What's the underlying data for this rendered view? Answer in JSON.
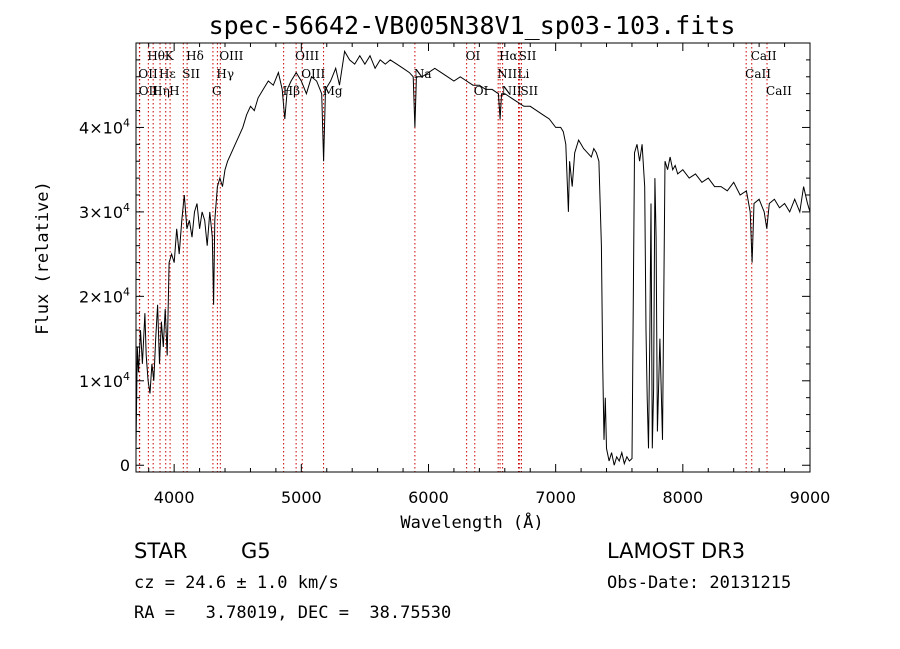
{
  "chart_data": {
    "type": "line",
    "title": "spec-56642-VB005N38V1_sp03-103.fits",
    "xlabel": "Wavelength (Å)",
    "ylabel": "Flux (relative)",
    "xlim": [
      3700,
      9000
    ],
    "ylim": [
      -800,
      50000
    ],
    "x_ticks": [
      4000,
      5000,
      6000,
      7000,
      8000,
      9000
    ],
    "y_ticks": [
      {
        "value": 0,
        "mant": "0",
        "exp": ""
      },
      {
        "value": 10000,
        "mant": "1×10",
        "exp": "4"
      },
      {
        "value": 20000,
        "mant": "2×10",
        "exp": "4"
      },
      {
        "value": 30000,
        "mant": "3×10",
        "exp": "4"
      },
      {
        "value": 40000,
        "mant": "4×10",
        "exp": "4"
      }
    ],
    "series": [
      {
        "name": "flux",
        "color": "#000000",
        "points": [
          [
            3700,
            2000
          ],
          [
            3710,
            14000
          ],
          [
            3720,
            11000
          ],
          [
            3735,
            16000
          ],
          [
            3750,
            12000
          ],
          [
            3770,
            18000
          ],
          [
            3780,
            13000
          ],
          [
            3795,
            10000
          ],
          [
            3810,
            8500
          ],
          [
            3825,
            12000
          ],
          [
            3840,
            10000
          ],
          [
            3855,
            15000
          ],
          [
            3870,
            19000
          ],
          [
            3885,
            12000
          ],
          [
            3900,
            17000
          ],
          [
            3915,
            14000
          ],
          [
            3930,
            18500
          ],
          [
            3945,
            13000
          ],
          [
            3960,
            24000
          ],
          [
            3980,
            25000
          ],
          [
            4000,
            24000
          ],
          [
            4020,
            28000
          ],
          [
            4040,
            25000
          ],
          [
            4060,
            29000
          ],
          [
            4080,
            32000
          ],
          [
            4100,
            28000
          ],
          [
            4120,
            29000
          ],
          [
            4140,
            27000
          ],
          [
            4160,
            30000
          ],
          [
            4180,
            31000
          ],
          [
            4200,
            28000
          ],
          [
            4220,
            30000
          ],
          [
            4240,
            29000
          ],
          [
            4260,
            26000
          ],
          [
            4280,
            30000
          ],
          [
            4300,
            27000
          ],
          [
            4310,
            19000
          ],
          [
            4320,
            29000
          ],
          [
            4340,
            33000
          ],
          [
            4360,
            34000
          ],
          [
            4380,
            33000
          ],
          [
            4400,
            35000
          ],
          [
            4420,
            36000
          ],
          [
            4450,
            37000
          ],
          [
            4480,
            38000
          ],
          [
            4510,
            39000
          ],
          [
            4540,
            40000
          ],
          [
            4570,
            41500
          ],
          [
            4600,
            42500
          ],
          [
            4630,
            42000
          ],
          [
            4660,
            43500
          ],
          [
            4700,
            44500
          ],
          [
            4740,
            45500
          ],
          [
            4780,
            45000
          ],
          [
            4820,
            46500
          ],
          [
            4850,
            44500
          ],
          [
            4870,
            41000
          ],
          [
            4890,
            44500
          ],
          [
            4920,
            45500
          ],
          [
            4960,
            46500
          ],
          [
            5000,
            45500
          ],
          [
            5040,
            44000
          ],
          [
            5080,
            46000
          ],
          [
            5120,
            45500
          ],
          [
            5160,
            44000
          ],
          [
            5175,
            36000
          ],
          [
            5190,
            44500
          ],
          [
            5230,
            45500
          ],
          [
            5270,
            47000
          ],
          [
            5300,
            45000
          ],
          [
            5340,
            49000
          ],
          [
            5380,
            48000
          ],
          [
            5420,
            47500
          ],
          [
            5460,
            48500
          ],
          [
            5500,
            47500
          ],
          [
            5540,
            48500
          ],
          [
            5580,
            47000
          ],
          [
            5620,
            48000
          ],
          [
            5660,
            47500
          ],
          [
            5700,
            48000
          ],
          [
            5750,
            47500
          ],
          [
            5800,
            47000
          ],
          [
            5850,
            46500
          ],
          [
            5880,
            46000
          ],
          [
            5893,
            40000
          ],
          [
            5905,
            46000
          ],
          [
            5950,
            46000
          ],
          [
            6000,
            46500
          ],
          [
            6050,
            47000
          ],
          [
            6100,
            46500
          ],
          [
            6150,
            46000
          ],
          [
            6200,
            45500
          ],
          [
            6250,
            46000
          ],
          [
            6300,
            45500
          ],
          [
            6350,
            45000
          ],
          [
            6400,
            45000
          ],
          [
            6450,
            44500
          ],
          [
            6500,
            44500
          ],
          [
            6550,
            44000
          ],
          [
            6563,
            41000
          ],
          [
            6575,
            44000
          ],
          [
            6600,
            44000
          ],
          [
            6650,
            43500
          ],
          [
            6700,
            43000
          ],
          [
            6750,
            42500
          ],
          [
            6800,
            42500
          ],
          [
            6850,
            42000
          ],
          [
            6900,
            41500
          ],
          [
            6950,
            41000
          ],
          [
            7000,
            40000
          ],
          [
            7040,
            40000
          ],
          [
            7060,
            39500
          ],
          [
            7080,
            38000
          ],
          [
            7100,
            30000
          ],
          [
            7110,
            36000
          ],
          [
            7130,
            33000
          ],
          [
            7150,
            37000
          ],
          [
            7180,
            38500
          ],
          [
            7200,
            38000
          ],
          [
            7220,
            37500
          ],
          [
            7250,
            37000
          ],
          [
            7280,
            36500
          ],
          [
            7300,
            37500
          ],
          [
            7320,
            37000
          ],
          [
            7340,
            36000
          ],
          [
            7360,
            26000
          ],
          [
            7370,
            12000
          ],
          [
            7380,
            3000
          ],
          [
            7390,
            8000
          ],
          [
            7400,
            2000
          ],
          [
            7420,
            500
          ],
          [
            7440,
            1500
          ],
          [
            7460,
            0
          ],
          [
            7480,
            1000
          ],
          [
            7500,
            500
          ],
          [
            7520,
            1500
          ],
          [
            7540,
            200
          ],
          [
            7560,
            1000
          ],
          [
            7580,
            500
          ],
          [
            7600,
            800
          ],
          [
            7620,
            37000
          ],
          [
            7640,
            38000
          ],
          [
            7660,
            36000
          ],
          [
            7680,
            38000
          ],
          [
            7700,
            33000
          ],
          [
            7710,
            16000
          ],
          [
            7720,
            8000
          ],
          [
            7730,
            2000
          ],
          [
            7740,
            15000
          ],
          [
            7750,
            31000
          ],
          [
            7760,
            2000
          ],
          [
            7770,
            9000
          ],
          [
            7780,
            34000
          ],
          [
            7790,
            27000
          ],
          [
            7800,
            4000
          ],
          [
            7820,
            15000
          ],
          [
            7840,
            3000
          ],
          [
            7860,
            36000
          ],
          [
            7880,
            35000
          ],
          [
            7900,
            36500
          ],
          [
            7920,
            35000
          ],
          [
            7940,
            35500
          ],
          [
            7960,
            34500
          ],
          [
            8000,
            35000
          ],
          [
            8050,
            34000
          ],
          [
            8100,
            34500
          ],
          [
            8150,
            33500
          ],
          [
            8200,
            34000
          ],
          [
            8250,
            33000
          ],
          [
            8300,
            33000
          ],
          [
            8350,
            32500
          ],
          [
            8400,
            33500
          ],
          [
            8450,
            32000
          ],
          [
            8500,
            32500
          ],
          [
            8530,
            30000
          ],
          [
            8545,
            24000
          ],
          [
            8560,
            31000
          ],
          [
            8600,
            31500
          ],
          [
            8640,
            30000
          ],
          [
            8660,
            28000
          ],
          [
            8680,
            31000
          ],
          [
            8720,
            31500
          ],
          [
            8760,
            30500
          ],
          [
            8800,
            31000
          ],
          [
            8840,
            30000
          ],
          [
            8880,
            31500
          ],
          [
            8920,
            30000
          ],
          [
            8950,
            33000
          ],
          [
            8980,
            31000
          ],
          [
            9000,
            30000
          ]
        ]
      }
    ],
    "line_markers": [
      {
        "label": "Hθ",
        "wl": 3797,
        "row": 0
      },
      {
        "label": "K",
        "wl": 3934,
        "row": 0
      },
      {
        "label": "Hδ",
        "wl": 4102,
        "row": 0
      },
      {
        "label": "OIII",
        "wl": 4363,
        "row": 0
      },
      {
        "label": "OIII",
        "wl": 4959,
        "row": 0
      },
      {
        "label": "OI",
        "wl": 6300,
        "row": 0
      },
      {
        "label": "Hα",
        "wl": 6563,
        "row": 0
      },
      {
        "label": "SII",
        "wl": 6717,
        "row": 0
      },
      {
        "label": "CaII",
        "wl": 8542,
        "row": 0
      },
      {
        "label": "OII",
        "wl": 3727,
        "row": 1
      },
      {
        "label": "Hε",
        "wl": 3889,
        "row": 1
      },
      {
        "label": "SII",
        "wl": 4072,
        "row": 1
      },
      {
        "label": "Hγ",
        "wl": 4340,
        "row": 1
      },
      {
        "label": "OIII",
        "wl": 5007,
        "row": 1
      },
      {
        "label": "Na",
        "wl": 5893,
        "row": 1
      },
      {
        "label": "NII",
        "wl": 6548,
        "row": 1
      },
      {
        "label": "Li",
        "wl": 6708,
        "row": 1
      },
      {
        "label": "CaII",
        "wl": 8498,
        "row": 1
      },
      {
        "label": "OII",
        "wl": 3729,
        "row": 2
      },
      {
        "label": "Hη",
        "wl": 3835,
        "row": 2
      },
      {
        "label": "H",
        "wl": 3968,
        "row": 2
      },
      {
        "label": "G",
        "wl": 4305,
        "row": 2
      },
      {
        "label": "Hβ",
        "wl": 4861,
        "row": 2
      },
      {
        "label": "Mg",
        "wl": 5175,
        "row": 2
      },
      {
        "label": "OI",
        "wl": 6364,
        "row": 2
      },
      {
        "label": "NII",
        "wl": 6583,
        "row": 2
      },
      {
        "label": "SII",
        "wl": 6731,
        "row": 2
      },
      {
        "label": "CaII",
        "wl": 8662,
        "row": 2
      }
    ],
    "line_color": "#cc0000"
  },
  "info": {
    "object_class": "STAR",
    "subclass": "G5",
    "survey": "LAMOST DR3",
    "cz": "cz = 24.6 ± 1.0 km/s",
    "obs_date": "Obs-Date: 20131215",
    "coords": "RA =   3.78019, DEC =  38.75530"
  }
}
